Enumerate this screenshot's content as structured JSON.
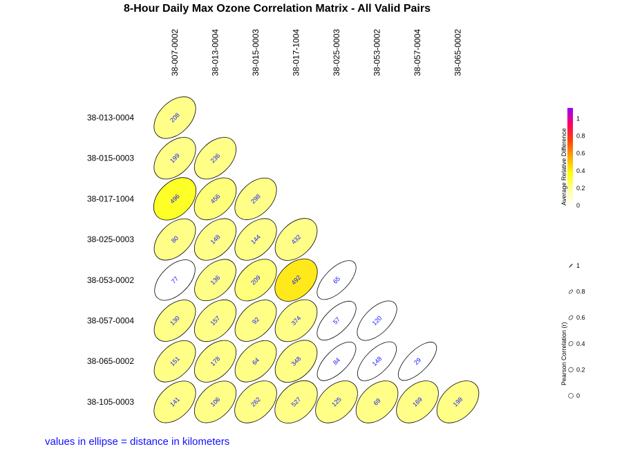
{
  "chart_data": {
    "type": "correlation-ellipse-matrix",
    "title": "8-Hour Daily Max Ozone Correlation Matrix - All Valid Pairs",
    "column_labels": [
      "38-007-0002",
      "38-013-0004",
      "38-015-0003",
      "38-017-1004",
      "38-025-0003",
      "38-053-0002",
      "38-057-0004",
      "38-065-0002"
    ],
    "row_labels": [
      "38-013-0004",
      "38-015-0003",
      "38-017-1004",
      "38-025-0003",
      "38-053-0002",
      "38-057-0004",
      "38-065-0002",
      "38-105-0003"
    ],
    "cells": [
      {
        "row": 0,
        "col": 0,
        "distance_km": "208",
        "r": 0.6,
        "rel_diff": 0.25
      },
      {
        "row": 1,
        "col": 0,
        "distance_km": "199",
        "r": 0.6,
        "rel_diff": 0.25
      },
      {
        "row": 1,
        "col": 1,
        "distance_km": "236",
        "r": 0.6,
        "rel_diff": 0.25
      },
      {
        "row": 2,
        "col": 0,
        "distance_km": "496",
        "r": 0.55,
        "rel_diff": 0.45
      },
      {
        "row": 2,
        "col": 1,
        "distance_km": "456",
        "r": 0.58,
        "rel_diff": 0.28
      },
      {
        "row": 2,
        "col": 2,
        "distance_km": "298",
        "r": 0.6,
        "rel_diff": 0.25
      },
      {
        "row": 3,
        "col": 0,
        "distance_km": "80",
        "r": 0.62,
        "rel_diff": 0.25
      },
      {
        "row": 3,
        "col": 1,
        "distance_km": "148",
        "r": 0.6,
        "rel_diff": 0.25
      },
      {
        "row": 3,
        "col": 2,
        "distance_km": "144",
        "r": 0.6,
        "rel_diff": 0.25
      },
      {
        "row": 3,
        "col": 3,
        "distance_km": "432",
        "r": 0.58,
        "rel_diff": 0.25
      },
      {
        "row": 4,
        "col": 0,
        "distance_km": "77",
        "r": 0.68,
        "rel_diff": 0.0
      },
      {
        "row": 4,
        "col": 1,
        "distance_km": "136",
        "r": 0.62,
        "rel_diff": 0.25
      },
      {
        "row": 4,
        "col": 2,
        "distance_km": "209",
        "r": 0.6,
        "rel_diff": 0.28
      },
      {
        "row": 4,
        "col": 3,
        "distance_km": "492",
        "r": 0.55,
        "rel_diff": 0.5
      },
      {
        "row": 4,
        "col": 4,
        "distance_km": "65",
        "r": 0.78,
        "rel_diff": 0.0
      },
      {
        "row": 5,
        "col": 0,
        "distance_km": "130",
        "r": 0.62,
        "rel_diff": 0.25
      },
      {
        "row": 5,
        "col": 1,
        "distance_km": "157",
        "r": 0.6,
        "rel_diff": 0.25
      },
      {
        "row": 5,
        "col": 2,
        "distance_km": "92",
        "r": 0.62,
        "rel_diff": 0.25
      },
      {
        "row": 5,
        "col": 3,
        "distance_km": "374",
        "r": 0.58,
        "rel_diff": 0.25
      },
      {
        "row": 5,
        "col": 4,
        "distance_km": "57",
        "r": 0.78,
        "rel_diff": 0.0
      },
      {
        "row": 5,
        "col": 5,
        "distance_km": "120",
        "r": 0.74,
        "rel_diff": 0.0
      },
      {
        "row": 6,
        "col": 0,
        "distance_km": "151",
        "r": 0.62,
        "rel_diff": 0.25
      },
      {
        "row": 6,
        "col": 1,
        "distance_km": "178",
        "r": 0.6,
        "rel_diff": 0.25
      },
      {
        "row": 6,
        "col": 2,
        "distance_km": "64",
        "r": 0.62,
        "rel_diff": 0.25
      },
      {
        "row": 6,
        "col": 3,
        "distance_km": "348",
        "r": 0.58,
        "rel_diff": 0.25
      },
      {
        "row": 6,
        "col": 4,
        "distance_km": "84",
        "r": 0.8,
        "rel_diff": 0.0
      },
      {
        "row": 6,
        "col": 5,
        "distance_km": "148",
        "r": 0.78,
        "rel_diff": 0.0
      },
      {
        "row": 6,
        "col": 6,
        "distance_km": "29",
        "r": 0.82,
        "rel_diff": 0.0
      },
      {
        "row": 7,
        "col": 0,
        "distance_km": "141",
        "r": 0.6,
        "rel_diff": 0.25
      },
      {
        "row": 7,
        "col": 1,
        "distance_km": "106",
        "r": 0.6,
        "rel_diff": 0.25
      },
      {
        "row": 7,
        "col": 2,
        "distance_km": "262",
        "r": 0.58,
        "rel_diff": 0.25
      },
      {
        "row": 7,
        "col": 3,
        "distance_km": "527",
        "r": 0.55,
        "rel_diff": 0.25
      },
      {
        "row": 7,
        "col": 4,
        "distance_km": "125",
        "r": 0.58,
        "rel_diff": 0.25
      },
      {
        "row": 7,
        "col": 5,
        "distance_km": "69",
        "r": 0.58,
        "rel_diff": 0.25
      },
      {
        "row": 7,
        "col": 6,
        "distance_km": "169",
        "r": 0.58,
        "rel_diff": 0.25
      },
      {
        "row": 7,
        "col": 7,
        "distance_km": "198",
        "r": 0.58,
        "rel_diff": 0.25
      }
    ],
    "color_legend": {
      "title": "Average Relative Difference",
      "range": [
        0,
        1.1
      ],
      "ticks": [
        "0",
        "0.2",
        "0.4",
        "0.6",
        "0.8",
        "1"
      ],
      "gradient": [
        "#ffffff",
        "#ffff99",
        "#ffff00",
        "#ffaa00",
        "#ff4400",
        "#ff0066",
        "#9900ff"
      ]
    },
    "shape_legend": {
      "title": "Pearson Correlation (r)",
      "ticks": [
        "0",
        "0.2",
        "0.4",
        "0.6",
        "0.8",
        "1"
      ]
    },
    "text_color": "#1010ff"
  },
  "footnote": "values in ellipse = distance in kilometers"
}
